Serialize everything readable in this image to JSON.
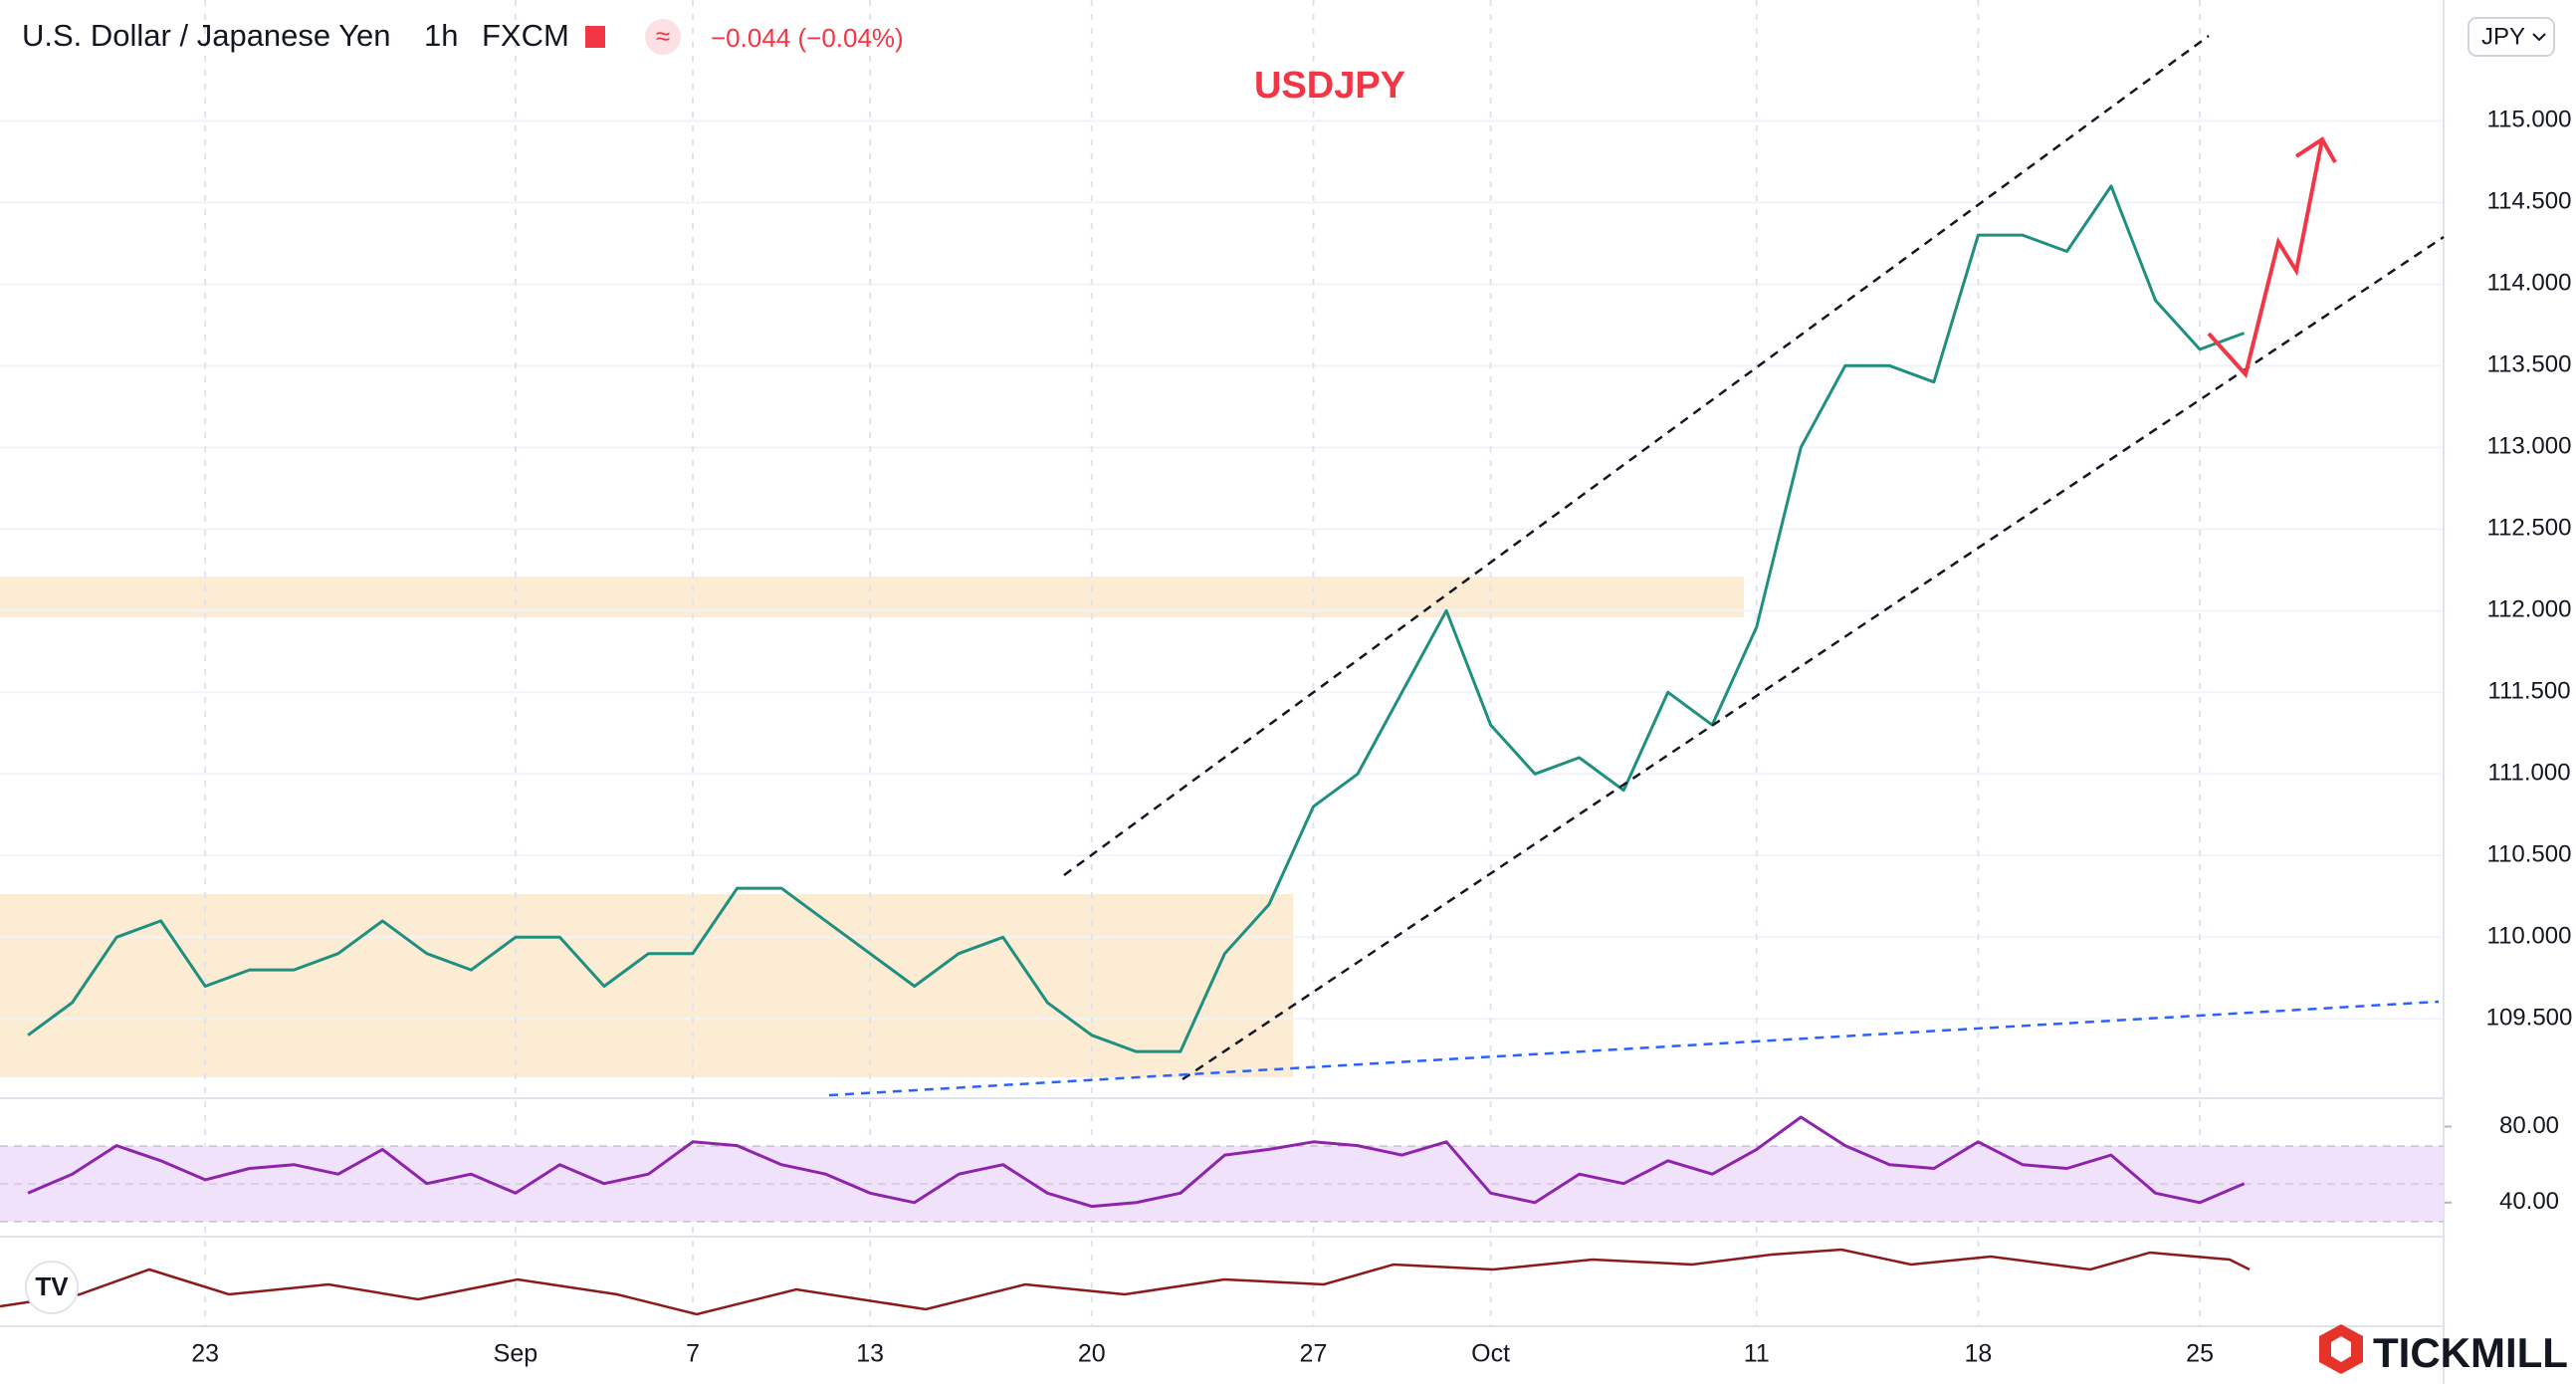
{
  "header": {
    "symbol": "U.S. Dollar / Japanese Yen",
    "interval": "1h",
    "source": "FXCM",
    "indicator": "≈",
    "change": "−0.044 (−0.04%)",
    "currency": "JPY"
  },
  "chart_data": [
    {
      "type": "line",
      "title": "USDJPY",
      "x": [
        -4,
        -3,
        -2,
        -1,
        0,
        1,
        2,
        3,
        4,
        5,
        6,
        7,
        8,
        9,
        10,
        11,
        12,
        13,
        14,
        15,
        16,
        17,
        18,
        19,
        20,
        21,
        22,
        23,
        24,
        25,
        26,
        27,
        28,
        29,
        30,
        31,
        32,
        33,
        34,
        35,
        36,
        37,
        38,
        39,
        40,
        41,
        42,
        43,
        44,
        45,
        46
      ],
      "series": [
        {
          "color": "#1f8f7f",
          "values": [
            109.4,
            109.6,
            110.0,
            110.1,
            109.7,
            109.8,
            109.8,
            109.9,
            110.1,
            109.9,
            109.8,
            110.0,
            110.0,
            109.7,
            109.9,
            109.9,
            110.3,
            110.3,
            110.1,
            109.9,
            109.7,
            109.9,
            110.0,
            109.6,
            109.4,
            109.3,
            109.3,
            109.9,
            110.2,
            110.8,
            111.0,
            111.5,
            112.0,
            111.3,
            111.0,
            111.1,
            110.9,
            111.5,
            111.3,
            111.9,
            113.0,
            113.5,
            113.5,
            113.4,
            114.3,
            114.3,
            114.2,
            114.6,
            113.9,
            113.6,
            113.7
          ]
        }
      ],
      "xlim": [
        -4.63,
        50.5
      ],
      "ylim": [
        109.02,
        115.74
      ],
      "yticks": [
        {
          "value": 109.5,
          "label": "109.500"
        },
        {
          "value": 110,
          "label": "110.000"
        },
        {
          "value": 110.5,
          "label": "110.500"
        },
        {
          "value": 111,
          "label": "111.000"
        },
        {
          "value": 111.5,
          "label": "111.500"
        },
        {
          "value": 112,
          "label": "112.000"
        },
        {
          "value": 112.5,
          "label": "112.500"
        },
        {
          "value": 113,
          "label": "113.000"
        },
        {
          "value": 113.5,
          "label": "113.500"
        },
        {
          "value": 114,
          "label": "114.000"
        },
        {
          "value": 114.5,
          "label": "114.500"
        },
        {
          "value": 115,
          "label": "115.000"
        }
      ],
      "xticks": [
        {
          "value": 0,
          "label": "23"
        },
        {
          "value": 7,
          "label": "Sep"
        },
        {
          "value": 11,
          "label": "7"
        },
        {
          "value": 15,
          "label": "13"
        },
        {
          "value": 20,
          "label": "20"
        },
        {
          "value": 25,
          "label": "27"
        },
        {
          "value": 29,
          "label": "Oct"
        },
        {
          "value": 35,
          "label": "11"
        },
        {
          "value": 40,
          "label": "18"
        },
        {
          "value": 45,
          "label": "25"
        }
      ],
      "grid": true
    },
    {
      "type": "line",
      "x": [
        -4,
        -3,
        -2,
        -1,
        0,
        1,
        2,
        3,
        4,
        5,
        6,
        7,
        8,
        9,
        10,
        11,
        12,
        13,
        14,
        15,
        16,
        17,
        18,
        19,
        20,
        21,
        22,
        23,
        24,
        25,
        26,
        27,
        28,
        29,
        30,
        31,
        32,
        33,
        34,
        35,
        36,
        37,
        38,
        39,
        40,
        41,
        42,
        43,
        44,
        45,
        46
      ],
      "series": [
        {
          "color": "#8e24aa",
          "values": [
            45,
            55,
            70,
            62,
            52,
            58,
            60,
            55,
            68,
            50,
            55,
            45,
            60,
            50,
            55,
            72,
            70,
            60,
            55,
            45,
            40,
            55,
            60,
            45,
            38,
            40,
            45,
            65,
            68,
            72,
            70,
            65,
            72,
            45,
            40,
            55,
            50,
            62,
            55,
            68,
            85,
            70,
            60,
            58,
            72,
            60,
            58,
            65,
            45,
            40,
            50
          ]
        }
      ],
      "xlim": [
        -4.63,
        50.5
      ],
      "ylim": [
        22.6,
        93.9
      ],
      "yticks": [
        {
          "value": 80,
          "label": "80.00"
        },
        {
          "value": 40,
          "label": "40.00"
        }
      ]
    }
  ],
  "brand": "TICKMILL"
}
